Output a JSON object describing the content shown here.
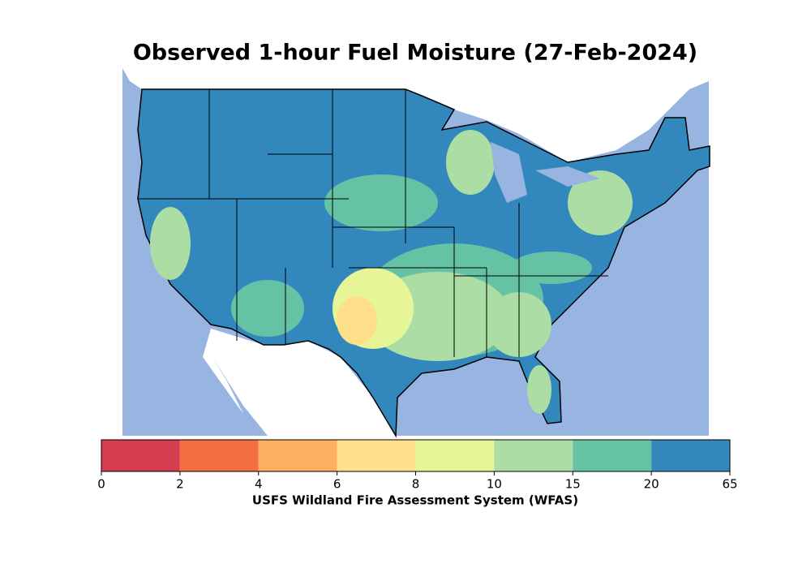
{
  "title": "Observed 1-hour Fuel Moisture (27-Feb-2024)",
  "colorbar": {
    "label": "USFS Wildland Fire Assessment System (WFAS)",
    "boundaries": [
      0,
      2,
      4,
      6,
      8,
      10,
      15,
      20,
      65
    ],
    "colors": [
      "#d53e4f",
      "#f46d43",
      "#fdae61",
      "#fee08b",
      "#e6f598",
      "#abdda4",
      "#66c2a5",
      "#3288bd"
    ]
  }
}
